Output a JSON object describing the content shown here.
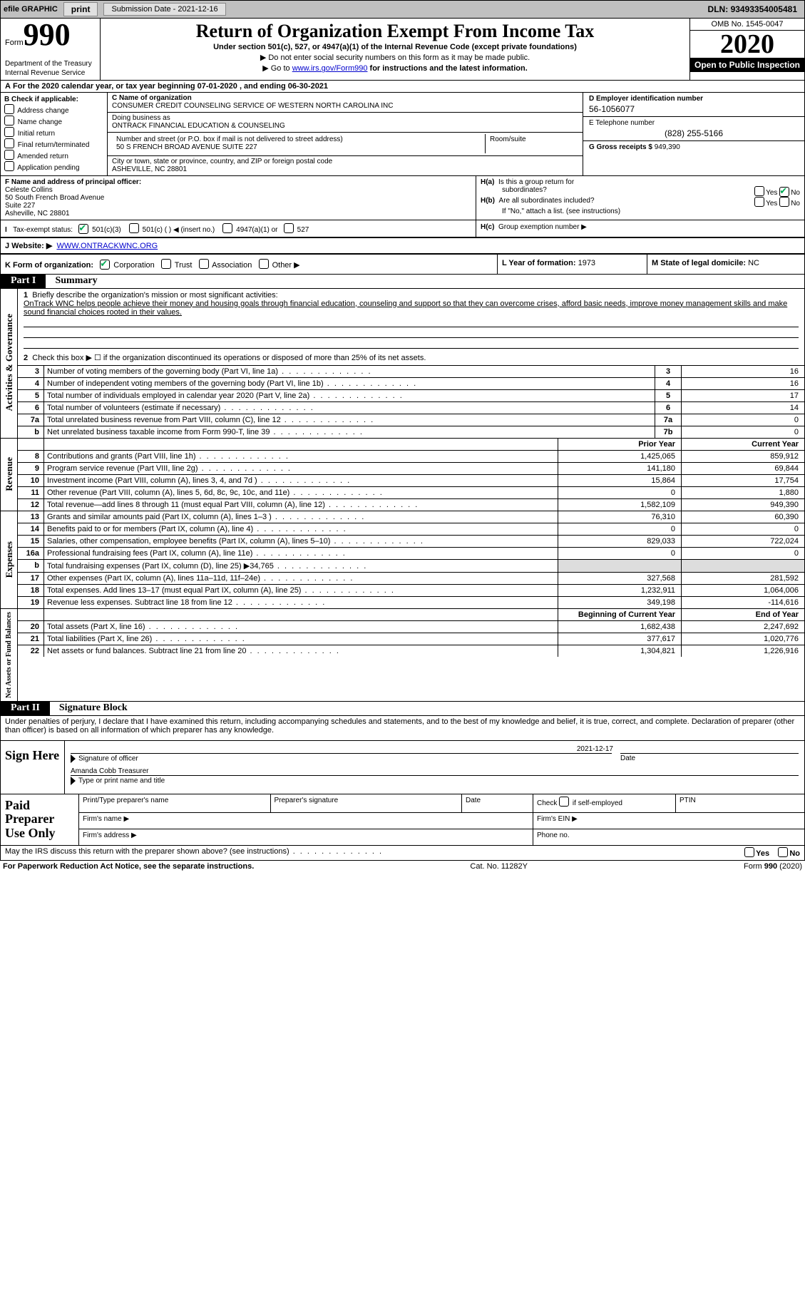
{
  "top": {
    "efile": "efile GRAPHIC",
    "print": "print",
    "submission": "Submission Date - 2021-12-16",
    "dln_label": "DLN:",
    "dln": "93493354005481"
  },
  "header": {
    "form_prefix": "Form",
    "form_number": "990",
    "dept": "Department of the Treasury\nInternal Revenue Service",
    "title": "Return of Organization Exempt From Income Tax",
    "subtitle": "Under section 501(c), 527, or 4947(a)(1) of the Internal Revenue Code (except private foundations)",
    "instr1": "▶ Do not enter social security numbers on this form as it may be made public.",
    "instr2_pre": "▶ Go to ",
    "instr2_link": "www.irs.gov/Form990",
    "instr2_post": " for instructions and the latest information.",
    "omb": "OMB No. 1545-0047",
    "year": "2020",
    "open_public": "Open to Public Inspection"
  },
  "row_a": {
    "label_a": "A",
    "text": "For the 2020 calendar year, or tax year beginning 07-01-2020   , and ending 06-30-2021"
  },
  "section_b": {
    "label": "B Check if applicable:",
    "opts": [
      "Address change",
      "Name change",
      "Initial return",
      "Final return/terminated",
      "Amended return",
      "Application pending"
    ]
  },
  "section_c": {
    "label": "C Name of organization",
    "name": "CONSUMER CREDIT COUNSELING SERVICE OF WESTERN NORTH CAROLINA INC",
    "dba_label": "Doing business as",
    "dba": "ONTRACK FINANCIAL EDUCATION & COUNSELING",
    "street_label": "Number and street (or P.O. box if mail is not delivered to street address)",
    "room_label": "Room/suite",
    "street": "50 S FRENCH BROAD AVENUE SUITE 227",
    "city_label": "City or town, state or province, country, and ZIP or foreign postal code",
    "city": "ASHEVILLE, NC  28801"
  },
  "section_d": {
    "label": "D Employer identification number",
    "ein": "56-1056077",
    "e_label": "E Telephone number",
    "phone": "(828) 255-5166",
    "g_label": "G Gross receipts $",
    "gross": "949,390"
  },
  "section_f": {
    "label": "F  Name and address of principal officer:",
    "name": "Celeste Collins",
    "addr1": "50 South French Broad Avenue",
    "addr2": "Suite 227",
    "addr3": "Asheville, NC  28801"
  },
  "section_h": {
    "ha_label": "H(a)  Is this a group return for",
    "ha_sub": "subordinates?",
    "hb_label": "H(b)  Are all subordinates included?",
    "hb_note": "If \"No,\" attach a list. (see instructions)",
    "hc_label": "H(c)  Group exemption number ▶",
    "yes": "Yes",
    "no": "No"
  },
  "row_i": {
    "label": "I    Tax-exempt status:",
    "opt1": "501(c)(3)",
    "opt2": "501(c) (  ) ◀ (insert no.)",
    "opt3": "4947(a)(1) or",
    "opt4": "527"
  },
  "row_j": {
    "label": "J   Website: ▶",
    "url": "WWW.ONTRACKWNC.ORG"
  },
  "row_k": {
    "label": "K Form of organization:",
    "opts": [
      "Corporation",
      "Trust",
      "Association",
      "Other ▶"
    ],
    "l_label": "L Year of formation:",
    "l_val": "1973",
    "m_label": "M State of legal domicile:",
    "m_val": "NC"
  },
  "part1": {
    "hdr": "Part I",
    "title": "Summary",
    "q1": "Briefly describe the organization's mission or most significant activities:",
    "mission": "OnTrack WNC helps people achieve their money and housing goals through financial education, counseling and support so that they can overcome crises, afford basic needs, improve money management skills and make sound financial choices rooted in their values.",
    "q2": "Check this box ▶ ☐ if the organization discontinued its operations or disposed of more than 25% of its net assets.",
    "side_labels": {
      "ag": "Activities & Governance",
      "rv": "Revenue",
      "ex": "Expenses",
      "na": "Net Assets or Fund Balances"
    },
    "lines_ag": [
      {
        "n": "3",
        "lbl": "Number of voting members of the governing body (Part VI, line 1a)",
        "box": "3",
        "val": "16"
      },
      {
        "n": "4",
        "lbl": "Number of independent voting members of the governing body (Part VI, line 1b)",
        "box": "4",
        "val": "16"
      },
      {
        "n": "5",
        "lbl": "Total number of individuals employed in calendar year 2020 (Part V, line 2a)",
        "box": "5",
        "val": "17"
      },
      {
        "n": "6",
        "lbl": "Total number of volunteers (estimate if necessary)",
        "box": "6",
        "val": "14"
      },
      {
        "n": "7a",
        "lbl": "Total unrelated business revenue from Part VIII, column (C), line 12",
        "box": "7a",
        "val": "0"
      },
      {
        "n": " b",
        "lbl": "Net unrelated business taxable income from Form 990-T, line 39",
        "box": "7b",
        "val": "0"
      }
    ],
    "hdr_prior": "Prior Year",
    "hdr_current": "Current Year",
    "lines_rv": [
      {
        "n": "8",
        "lbl": "Contributions and grants (Part VIII, line 1h)",
        "py": "1,425,065",
        "cy": "859,912"
      },
      {
        "n": "9",
        "lbl": "Program service revenue (Part VIII, line 2g)",
        "py": "141,180",
        "cy": "69,844"
      },
      {
        "n": "10",
        "lbl": "Investment income (Part VIII, column (A), lines 3, 4, and 7d )",
        "py": "15,864",
        "cy": "17,754"
      },
      {
        "n": "11",
        "lbl": "Other revenue (Part VIII, column (A), lines 5, 6d, 8c, 9c, 10c, and 11e)",
        "py": "0",
        "cy": "1,880"
      },
      {
        "n": "12",
        "lbl": "Total revenue—add lines 8 through 11 (must equal Part VIII, column (A), line 12)",
        "py": "1,582,109",
        "cy": "949,390"
      }
    ],
    "lines_ex": [
      {
        "n": "13",
        "lbl": "Grants and similar amounts paid (Part IX, column (A), lines 1–3 )",
        "py": "76,310",
        "cy": "60,390"
      },
      {
        "n": "14",
        "lbl": "Benefits paid to or for members (Part IX, column (A), line 4)",
        "py": "0",
        "cy": "0"
      },
      {
        "n": "15",
        "lbl": "Salaries, other compensation, employee benefits (Part IX, column (A), lines 5–10)",
        "py": "829,033",
        "cy": "722,024"
      },
      {
        "n": "16a",
        "lbl": "Professional fundraising fees (Part IX, column (A), line 11e)",
        "py": "0",
        "cy": "0"
      },
      {
        "n": " b",
        "lbl": "Total fundraising expenses (Part IX, column (D), line 25) ▶34,765",
        "py": "",
        "cy": "",
        "shaded": true
      },
      {
        "n": "17",
        "lbl": "Other expenses (Part IX, column (A), lines 11a–11d, 11f–24e)",
        "py": "327,568",
        "cy": "281,592"
      },
      {
        "n": "18",
        "lbl": "Total expenses. Add lines 13–17 (must equal Part IX, column (A), line 25)",
        "py": "1,232,911",
        "cy": "1,064,006"
      },
      {
        "n": "19",
        "lbl": "Revenue less expenses. Subtract line 18 from line 12",
        "py": "349,198",
        "cy": "-114,616"
      }
    ],
    "hdr_begin": "Beginning of Current Year",
    "hdr_end": "End of Year",
    "lines_na": [
      {
        "n": "20",
        "lbl": "Total assets (Part X, line 16)",
        "py": "1,682,438",
        "cy": "2,247,692"
      },
      {
        "n": "21",
        "lbl": "Total liabilities (Part X, line 26)",
        "py": "377,617",
        "cy": "1,020,776"
      },
      {
        "n": "22",
        "lbl": "Net assets or fund balances. Subtract line 21 from line 20",
        "py": "1,304,821",
        "cy": "1,226,916"
      }
    ]
  },
  "part2": {
    "hdr": "Part II",
    "title": "Signature Block",
    "decl": "Under penalties of perjury, I declare that I have examined this return, including accompanying schedules and statements, and to the best of my knowledge and belief, it is true, correct, and complete. Declaration of preparer (other than officer) is based on all information of which preparer has any knowledge."
  },
  "sign": {
    "label": "Sign Here",
    "sig_of_officer": "Signature of officer",
    "date": "2021-12-17",
    "date_lbl": "Date",
    "name": "Amanda Cobb Treasurer",
    "name_lbl": "Type or print name and title"
  },
  "paid": {
    "label": "Paid Preparer Use Only",
    "c1": "Print/Type preparer's name",
    "c2": "Preparer's signature",
    "c3": "Date",
    "c4a": "Check",
    "c4b": "if self-employed",
    "c5": "PTIN",
    "firm_name": "Firm's name    ▶",
    "firm_ein": "Firm's EIN ▶",
    "firm_addr": "Firm's address ▶",
    "phone": "Phone no."
  },
  "footer": {
    "discuss": "May the IRS discuss this return with the preparer shown above? (see instructions)",
    "yes": "Yes",
    "no": "No",
    "paperwork": "For Paperwork Reduction Act Notice, see the separate instructions.",
    "cat": "Cat. No. 11282Y",
    "form": "Form 990 (2020)"
  }
}
